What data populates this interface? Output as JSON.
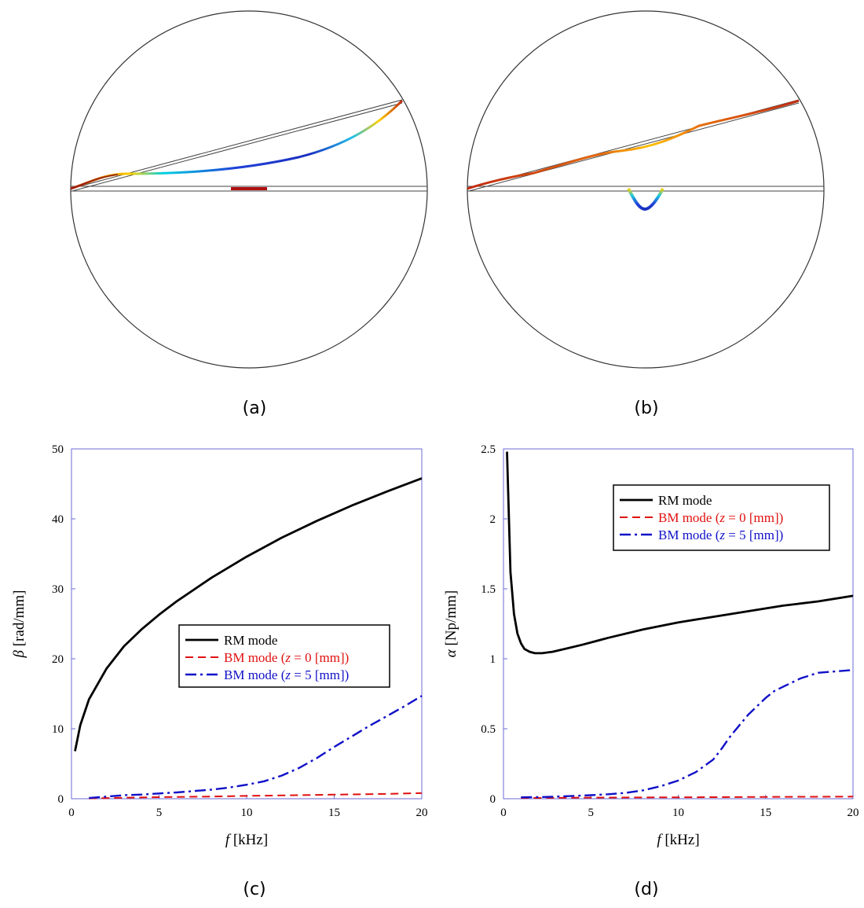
{
  "panels": {
    "a": "(a)",
    "b": "(b)",
    "c": "(c)",
    "d": "(d)"
  },
  "colors": {
    "rm": "#000000",
    "bm_z0": "#e01010",
    "bm_z5": "#1010c8",
    "frame": "#6b6bd6"
  },
  "chart_data": [
    {
      "id": "c",
      "type": "line",
      "xlabel": {
        "sym": "f",
        "unit": " [kHz]"
      },
      "ylabel": {
        "sym": "β",
        "unit": " [rad/mm]"
      },
      "xlim": [
        0,
        20
      ],
      "ylim": [
        0,
        50
      ],
      "xticks": [
        "0",
        "5",
        "10",
        "15",
        "20"
      ],
      "yticks": [
        "0",
        "10",
        "20",
        "30",
        "40",
        "50"
      ],
      "legend_position": "center-right",
      "series": [
        {
          "name": "RM mode",
          "style": "solid",
          "x": [
            0.2,
            0.5,
            1,
            2,
            3,
            4,
            5,
            6,
            8,
            10,
            12,
            14,
            16,
            18,
            20
          ],
          "y": [
            6.8,
            10.5,
            14.2,
            18.6,
            21.8,
            24.2,
            26.3,
            28.2,
            31.6,
            34.6,
            37.3,
            39.7,
            41.9,
            43.9,
            45.8
          ]
        },
        {
          "name": "BM mode (z = 0 [mm])",
          "style": "dash",
          "x": [
            1,
            3,
            5,
            8,
            10,
            12,
            14,
            16,
            18,
            20
          ],
          "y": [
            0.05,
            0.15,
            0.22,
            0.32,
            0.4,
            0.47,
            0.55,
            0.62,
            0.7,
            0.8
          ]
        },
        {
          "name": "BM mode (z = 5 [mm])",
          "style": "dashdot",
          "x": [
            1,
            2,
            3,
            4,
            5,
            6,
            7,
            8,
            9,
            10,
            11,
            12,
            13,
            14,
            15,
            16,
            17,
            18,
            19,
            20
          ],
          "y": [
            0.1,
            0.3,
            0.5,
            0.6,
            0.75,
            0.9,
            1.1,
            1.3,
            1.6,
            2.0,
            2.5,
            3.3,
            4.4,
            5.8,
            7.4,
            8.9,
            10.4,
            11.8,
            13.2,
            14.7
          ]
        }
      ]
    },
    {
      "id": "d",
      "type": "line",
      "xlabel": {
        "sym": "f",
        "unit": " [kHz]"
      },
      "ylabel": {
        "sym": "α",
        "unit": " [Np/mm]"
      },
      "xlim": [
        0,
        20
      ],
      "ylim": [
        0,
        2.5
      ],
      "xticks": [
        "0",
        "5",
        "10",
        "15",
        "20"
      ],
      "yticks": [
        "0",
        "0.5",
        "1",
        "1.5",
        "2",
        "2.5"
      ],
      "legend_position": "top-right",
      "series": [
        {
          "name": "RM mode",
          "style": "solid",
          "x": [
            0.2,
            0.4,
            0.6,
            0.8,
            1.0,
            1.2,
            1.5,
            1.8,
            2.2,
            2.8,
            3.5,
            4.5,
            6,
            8,
            10,
            12,
            14,
            16,
            18,
            20
          ],
          "y": [
            2.48,
            1.62,
            1.32,
            1.18,
            1.11,
            1.07,
            1.05,
            1.04,
            1.04,
            1.05,
            1.07,
            1.1,
            1.15,
            1.21,
            1.26,
            1.3,
            1.34,
            1.38,
            1.41,
            1.45
          ]
        },
        {
          "name": "BM mode (z = 0 [mm])",
          "style": "dash",
          "x": [
            1,
            5,
            10,
            15,
            20
          ],
          "y": [
            0.005,
            0.008,
            0.01,
            0.013,
            0.015
          ]
        },
        {
          "name": "BM mode (z = 5 [mm])",
          "style": "dashdot",
          "x": [
            1,
            2,
            3,
            4,
            5,
            6,
            7,
            8,
            9,
            10,
            11,
            12,
            12.5,
            13,
            14,
            15,
            15.5,
            16,
            17,
            18,
            19,
            20
          ],
          "y": [
            0.01,
            0.012,
            0.015,
            0.02,
            0.025,
            0.032,
            0.042,
            0.06,
            0.09,
            0.13,
            0.19,
            0.28,
            0.36,
            0.45,
            0.6,
            0.72,
            0.77,
            0.8,
            0.86,
            0.9,
            0.91,
            0.92
          ]
        }
      ]
    }
  ]
}
